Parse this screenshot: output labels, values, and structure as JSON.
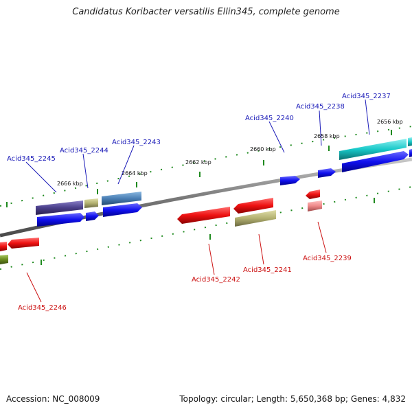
{
  "title": "Candidatus Koribacter versatilis Ellin345, complete genome",
  "footer": {
    "accession": "Accession: NC_008009",
    "topology": "Topology: circular; Length: 5,650,368 bp; Genes: 4,832"
  },
  "ticks": [
    {
      "label": "2666 kbp"
    },
    {
      "label": "2664 kbp"
    },
    {
      "label": "2662 kbp"
    },
    {
      "label": "2660 kbp"
    },
    {
      "label": "2658 kbp"
    },
    {
      "label": "2656 kbp"
    }
  ],
  "gene_labels_top": [
    {
      "name": "Acid345_2245",
      "color": "#1a1ab8"
    },
    {
      "name": "Acid345_2244",
      "color": "#1a1ab8"
    },
    {
      "name": "Acid345_2243",
      "color": "#1a1ab8"
    },
    {
      "name": "Acid345_2240",
      "color": "#1a1ab8"
    },
    {
      "name": "Acid345_2238",
      "color": "#1a1ab8"
    },
    {
      "name": "Acid345_2237",
      "color": "#1a1ab8"
    }
  ],
  "gene_labels_bottom": [
    {
      "name": "Acid345_2242",
      "color": "#cc1111"
    },
    {
      "name": "Acid345_2241",
      "color": "#cc1111"
    },
    {
      "name": "Acid345_2239",
      "color": "#cc1111"
    },
    {
      "name": "Acid345_2246",
      "color": "#cc1111"
    }
  ],
  "colors": {
    "forward_gene": "#1010ee",
    "reverse_gene": "#ee1111",
    "tick": "#1e8a1e",
    "backbone": "#808080",
    "cog_purple": "#4a3f8a",
    "cog_khaki": "#b2b070",
    "cog_steel": "#4a7fb5",
    "cog_cyan": "#18c8c8",
    "cog_pink": "#ee8888",
    "cog_olive": "#6a8a1e"
  }
}
